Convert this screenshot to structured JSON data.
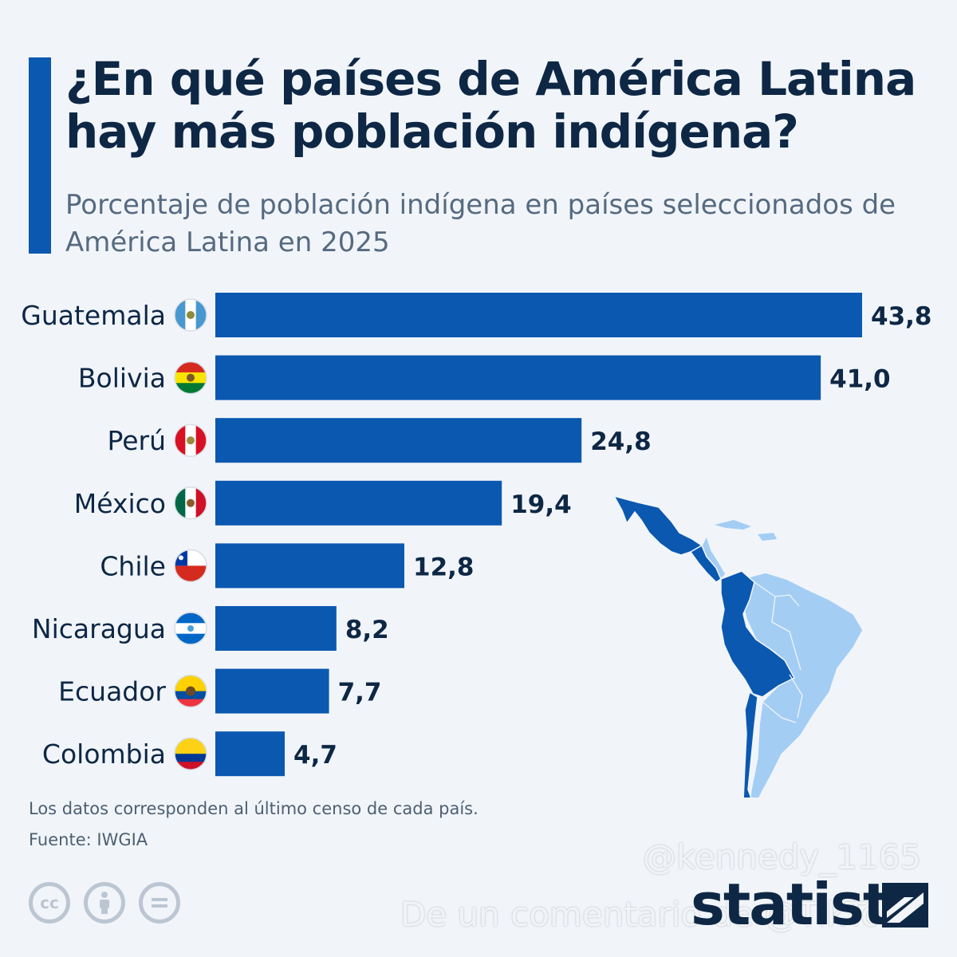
{
  "header": {
    "title": "¿En qué países de América Latina hay más población indígena?",
    "subtitle": "Porcentaje de población indígena en países seleccionados de América Latina en 2025"
  },
  "chart_data": {
    "type": "bar",
    "orientation": "horizontal",
    "title": "¿En qué países de América Latina hay más población indígena?",
    "subtitle": "Porcentaje de población indígena en países seleccionados de América Latina en 2025",
    "categories": [
      "Guatemala",
      "Bolivia",
      "Perú",
      "México",
      "Chile",
      "Nicaragua",
      "Ecuador",
      "Colombia"
    ],
    "values": [
      43.8,
      41.0,
      24.8,
      19.4,
      12.8,
      8.2,
      7.7,
      4.7
    ],
    "value_labels": [
      "43,8",
      "41,0",
      "24,8",
      "19,4",
      "12,8",
      "8,2",
      "7,7",
      "4,7"
    ],
    "xlim": [
      0,
      43.8
    ],
    "grid": false,
    "bar_color": "#0b58b0"
  },
  "footer": {
    "note": "Los datos corresponden al último censo de cada país.",
    "source": "Fuente: IWGIA",
    "brand": "statista",
    "license_icons": [
      "cc-icon",
      "attribution-icon",
      "no-derivatives-icon"
    ]
  },
  "watermark": {
    "handle": "@kennedy_1165",
    "comment": "De un comentario de @TikTok"
  },
  "colors": {
    "accent": "#0b58b0",
    "map_highlight": "#0b58b0",
    "map_other": "#a4cdf4",
    "text": "#0e2745"
  }
}
